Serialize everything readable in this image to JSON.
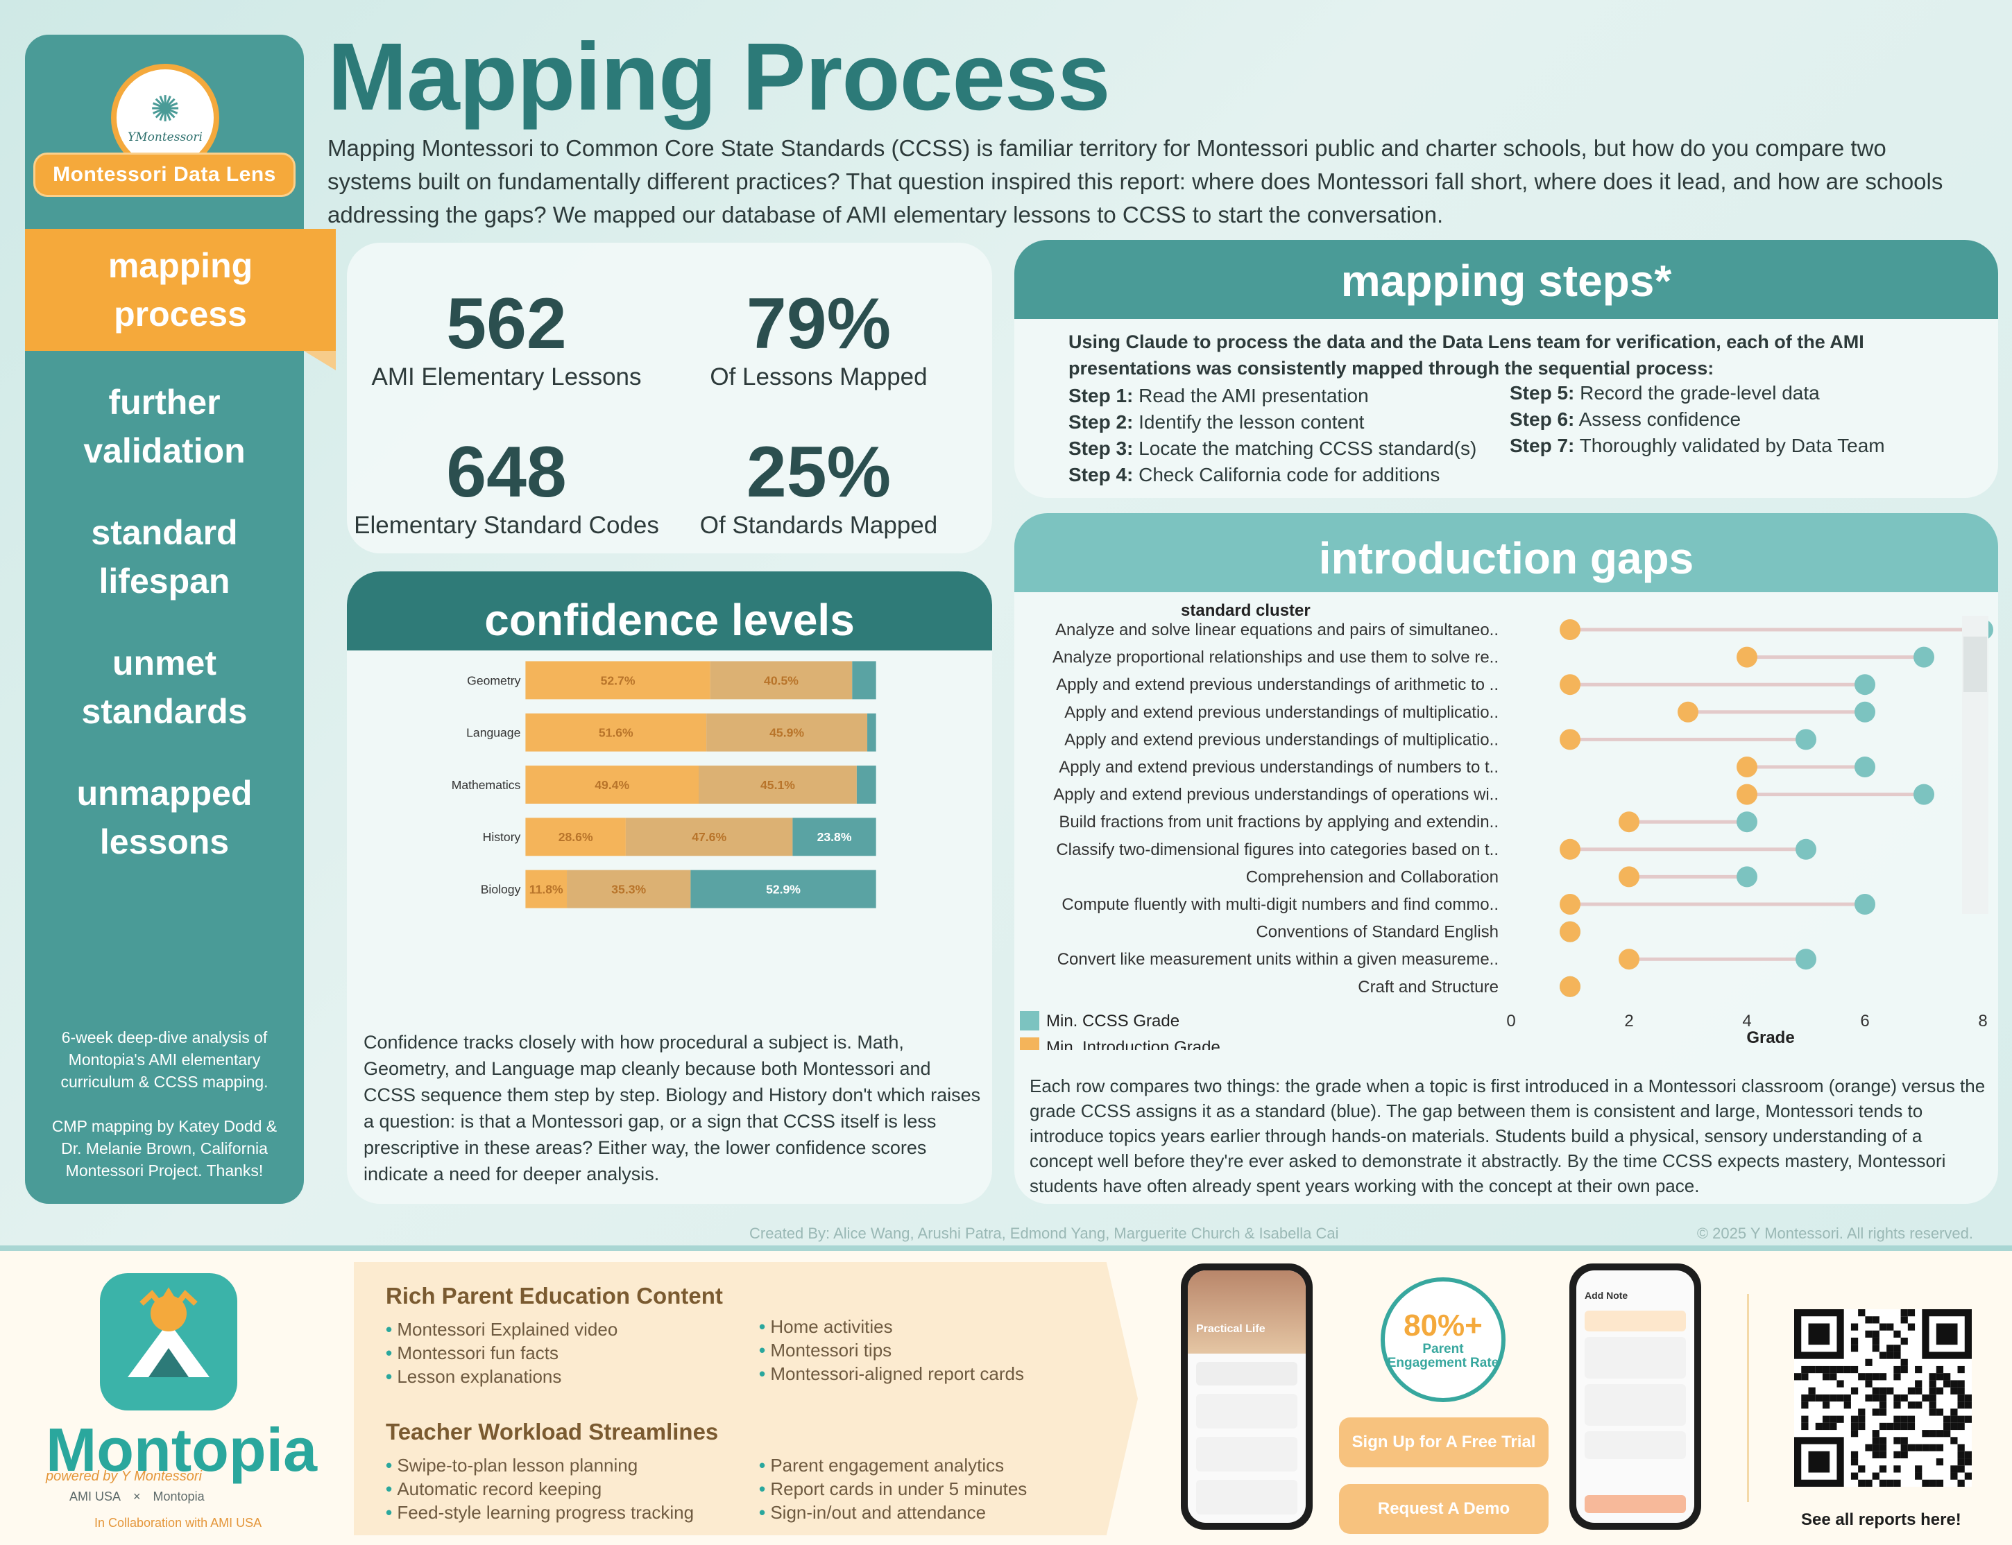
{
  "sidebar": {
    "logo_text": "YMontessori",
    "brand": "Montessori Data Lens",
    "nav": [
      {
        "label": "mapping process",
        "active": true
      },
      {
        "label": "further validation",
        "active": false
      },
      {
        "label": "standard lifespan",
        "active": false
      },
      {
        "label": "unmet standards",
        "active": false
      },
      {
        "label": "unmapped lessons",
        "active": false
      }
    ],
    "note_1": "6-week deep-dive analysis of Montopia's AMI elementary curriculum & CCSS mapping.",
    "note_2": "CMP mapping by Katey Dodd & Dr. Melanie Brown, California Montessori Project. Thanks!"
  },
  "header": {
    "title": "Mapping Process",
    "intro": "Mapping Montessori to Common Core State Standards (CCSS) is familiar territory for Montessori public and charter schools, but how do you compare two systems built on fundamentally different practices? That question inspired this report: where does Montessori fall short, where does it lead, and how are schools addressing the gaps? We mapped our database of AMI elementary lessons to CCSS to start the conversation."
  },
  "stats": [
    {
      "value": "562",
      "label": "AMI Elementary Lessons"
    },
    {
      "value": "79%",
      "label": "Of Lessons Mapped"
    },
    {
      "value": "648",
      "label": "Elementary Standard Codes"
    },
    {
      "value": "25%",
      "label": "Of Standards Mapped"
    }
  ],
  "confidence": {
    "title": "confidence levels",
    "text": "Confidence tracks closely with how procedural a subject is. Math, Geometry, and Language map cleanly because both Montessori and CCSS sequence them step by step. Biology and History don't which raises a question: is that a Montessori gap, or a sign that CCSS itself is less prescriptive in these areas? Either way, the lower confidence scores indicate a need for deeper analysis.",
    "colors": {
      "high": "#f4b45a",
      "medium": "#dcb173",
      "low": "#5aa3a3"
    }
  },
  "steps": {
    "title": "mapping steps*",
    "intro": "Using Claude to process the data and the Data Lens team for verification, each of the AMI presentations was consistently mapped through the sequential process:",
    "items": [
      {
        "label": "Step 1:",
        "text": "Read the AMI presentation"
      },
      {
        "label": "Step 2:",
        "text": "Identify the lesson content"
      },
      {
        "label": "Step 3:",
        "text": "Locate the matching CCSS standard(s)"
      },
      {
        "label": "Step 4:",
        "text": "Check California code for additions"
      },
      {
        "label": "Step 5:",
        "text": "Record the grade-level data"
      },
      {
        "label": "Step 6:",
        "text": "Assess confidence"
      },
      {
        "label": "Step 7:",
        "text": "Thoroughly validated by Data Team"
      }
    ]
  },
  "gaps": {
    "title": "introduction gaps",
    "text": "Each row compares two things: the grade when a topic is first introduced in a Montessori classroom (orange) versus the grade CCSS assigns it as a standard (blue). The gap between them is consistent and large, Montessori tends to introduce topics years earlier through hands-on materials. Students build a physical, sensory understanding of a concept well before they're ever asked to demonstrate it abstractly. By the time CCSS expects mastery, Montessori students have often already spent years working with the concept at their own pace.",
    "colors": {
      "ccss": "#7cc3c0",
      "intro": "#f4b45a",
      "line": "#e3caca"
    }
  },
  "chart_data": [
    {
      "type": "bar",
      "stacked": true,
      "orientation": "horizontal",
      "title": "confidence levels",
      "categories": [
        "Geometry",
        "Language",
        "Mathematics",
        "History",
        "Biology"
      ],
      "series": [
        {
          "values": [
            52.7,
            51.6,
            49.4,
            28.6,
            11.8
          ]
        },
        {
          "values": [
            40.5,
            45.9,
            45.1,
            47.6,
            35.3
          ]
        },
        {
          "values": [
            6.8,
            2.5,
            5.5,
            23.8,
            52.9
          ]
        }
      ],
      "labels": [
        [
          "52.7%",
          "51.6%",
          "49.4%",
          "28.6%",
          "11.8%"
        ],
        [
          "40.5%",
          "45.9%",
          "45.1%",
          "47.6%",
          "35.3%"
        ],
        [
          "",
          "",
          "",
          "23.8%",
          "52.9%"
        ]
      ],
      "xlim": [
        0,
        100
      ]
    },
    {
      "type": "scatter",
      "style": "dumbbell",
      "title": "introduction gaps",
      "ylabel": "standard cluster",
      "xlabel": "Grade",
      "xticks": [
        "0",
        "2",
        "4",
        "6",
        "8"
      ],
      "xlim": [
        0,
        8
      ],
      "categories": [
        "Analyze and solve linear equations and pairs of simultaneo..",
        "Analyze proportional relationships and use them to solve re..",
        "Apply and extend previous understandings of arithmetic to ..",
        "Apply and extend previous understandings of multiplicatio..",
        "Apply and extend previous understandings of multiplicatio..",
        "Apply and extend previous understandings of numbers to t..",
        "Apply and extend previous understandings of operations wi..",
        "Build fractions from unit fractions by applying and extendin..",
        "Classify two-dimensional figures into categories based on t..",
        "Comprehension and Collaboration",
        "Compute fluently with multi-digit numbers and find commo..",
        "Conventions of Standard English",
        "Convert like measurement units within a given measureme..",
        "Craft and Structure"
      ],
      "series": [
        {
          "name": "Min. CCSS Grade",
          "values": [
            8,
            7,
            6,
            6,
            5,
            6,
            7,
            4,
            5,
            4,
            6,
            1,
            5,
            1
          ]
        },
        {
          "name": "Min. Introduction Grade",
          "values": [
            1,
            4,
            1,
            3,
            1,
            4,
            4,
            2,
            1,
            2,
            1,
            1,
            2,
            1
          ]
        }
      ],
      "legend": "bottom-left"
    }
  ],
  "credits": "Created By:  Alice Wang, Arushi Patra, Edmond Yang, Marguerite Church & Isabella Cai",
  "copyright": "© 2025 Y Montessori. All rights reserved.",
  "footer": {
    "app_name": "Montopia",
    "powered_by": "powered by Y Montessori",
    "partner_1": "AMI USA",
    "partner_x": "×",
    "partner_2": "Montopia",
    "collab": "In Collaboration with AMI USA",
    "section_1_title": "Rich Parent Education Content",
    "section_1_left": [
      "Montessori Explained video",
      "Montessori fun facts",
      "Lesson explanations"
    ],
    "section_1_right": [
      "Home activities",
      "Montessori tips",
      "Montessori-aligned report cards"
    ],
    "section_2_title": "Teacher Workload Streamlines",
    "section_2_left": [
      "Swipe-to-plan lesson planning",
      "Automatic record keeping",
      "Feed-style learning progress tracking"
    ],
    "section_2_right": [
      "Parent engagement analytics",
      "Report cards in under 5 minutes",
      "Sign-in/out and attendance"
    ],
    "badge_value": "80%+",
    "badge_label": "Parent Engagement Rate",
    "cta_trial": "Sign Up for A Free Trial",
    "cta_demo": "Request A Demo",
    "qr_caption": "See all reports here!",
    "phone_1_title": "Practical Life",
    "phone_2_title": "Add Note"
  }
}
